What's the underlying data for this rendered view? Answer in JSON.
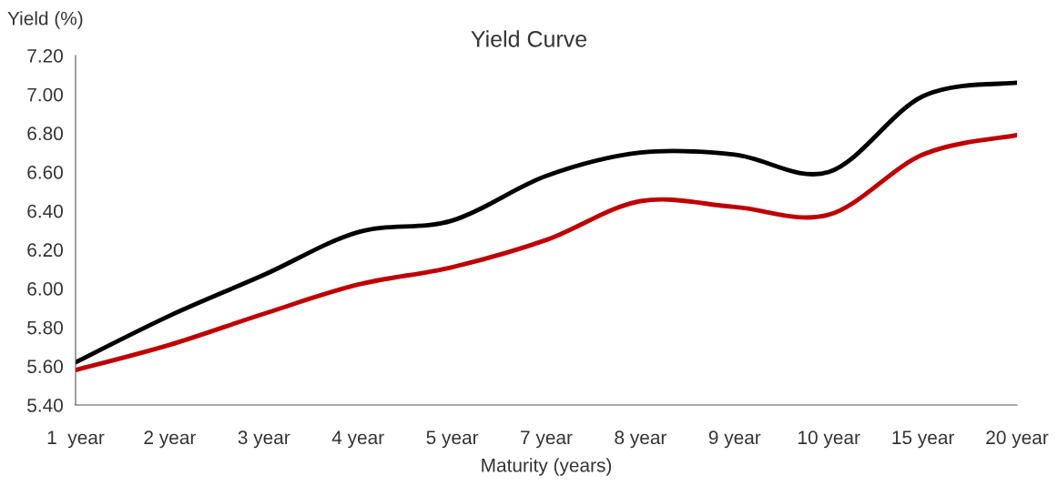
{
  "chart_data": {
    "type": "line",
    "title": "Yield Curve",
    "xlabel": "Maturity (years)",
    "ylabel": "Yield (%)",
    "categories": [
      "1  year",
      "2 year",
      "3 year",
      "4 year",
      "5 year",
      "7 year",
      "8 year",
      "9 year",
      "10 year",
      "15 year",
      "20 year"
    ],
    "series": [
      {
        "color": "#000000",
        "values": [
          5.62,
          5.86,
          6.07,
          6.29,
          6.35,
          6.58,
          6.7,
          6.69,
          6.6,
          6.99,
          7.06
        ]
      },
      {
        "color": "#c00000",
        "values": [
          5.58,
          5.71,
          5.87,
          6.02,
          6.11,
          6.25,
          6.45,
          6.42,
          6.38,
          6.69,
          6.79
        ]
      }
    ],
    "ylim": [
      5.4,
      7.2
    ],
    "yticks": [
      {
        "value": 5.4,
        "label": "5.40"
      },
      {
        "value": 5.6,
        "label": "5.60"
      },
      {
        "value": 5.8,
        "label": "5.80"
      },
      {
        "value": 6.0,
        "label": "6.00"
      },
      {
        "value": 6.2,
        "label": "6.20"
      },
      {
        "value": 6.4,
        "label": "6.40"
      },
      {
        "value": 6.6,
        "label": "6.60"
      },
      {
        "value": 6.8,
        "label": "6.80"
      },
      {
        "value": 7.0,
        "label": "7.00"
      },
      {
        "value": 7.2,
        "label": "7.20"
      }
    ],
    "grid": false
  }
}
